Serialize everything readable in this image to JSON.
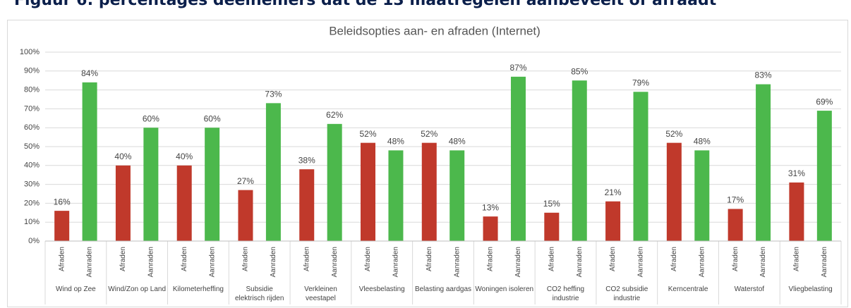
{
  "heading": "Figuur 6: percentages deelnemers dat de 13 maatregelen aanbeveelt of afraadt",
  "chart_data": {
    "type": "bar",
    "title": "Beleidsopties aan- en afraden (Internet)",
    "categories": [
      "Wind op Zee",
      "Wind/Zon op Land",
      "Kilometerheffing",
      "Subsidie elektrisch rijden",
      "Verkleinen veestapel",
      "Vleesbelasting",
      "Belasting aardgas",
      "Woningen isoleren",
      "CO2 heffing industrie",
      "CO2 subsidie industrie",
      "Kerncentrale",
      "Waterstof",
      "Vliegbelasting"
    ],
    "series": [
      {
        "name": "Afraden",
        "color": "#c0392b",
        "values": [
          16,
          40,
          40,
          27,
          38,
          52,
          52,
          13,
          15,
          21,
          52,
          17,
          31
        ],
        "value_labels": [
          "16%",
          "40%",
          "40%",
          "27%",
          "38%",
          "52%",
          "52%",
          "13%",
          "15%",
          "21%",
          "52%",
          "17%",
          "31%"
        ]
      },
      {
        "name": "Aanraden",
        "color": "#4cb84c",
        "values": [
          84,
          60,
          60,
          73,
          62,
          48,
          48,
          87,
          85,
          79,
          48,
          83,
          69
        ],
        "value_labels": [
          "84%",
          "60%",
          "60%",
          "73%",
          "62%",
          "48%",
          "48%",
          "87%",
          "85%",
          "79%",
          "48%",
          "83%",
          "69%"
        ]
      }
    ],
    "ylim": [
      0,
      100
    ],
    "yticks": [
      {
        "value": 0,
        "label": "0%"
      },
      {
        "value": 10,
        "label": "10%"
      },
      {
        "value": 20,
        "label": "20%"
      },
      {
        "value": 30,
        "label": "30%"
      },
      {
        "value": 40,
        "label": "40%"
      },
      {
        "value": 50,
        "label": "50%"
      },
      {
        "value": 60,
        "label": "60%"
      },
      {
        "value": 70,
        "label": "70%"
      },
      {
        "value": 80,
        "label": "80%"
      },
      {
        "value": 90,
        "label": "90%"
      },
      {
        "value": 100,
        "label": "100%"
      }
    ],
    "grid": true
  }
}
